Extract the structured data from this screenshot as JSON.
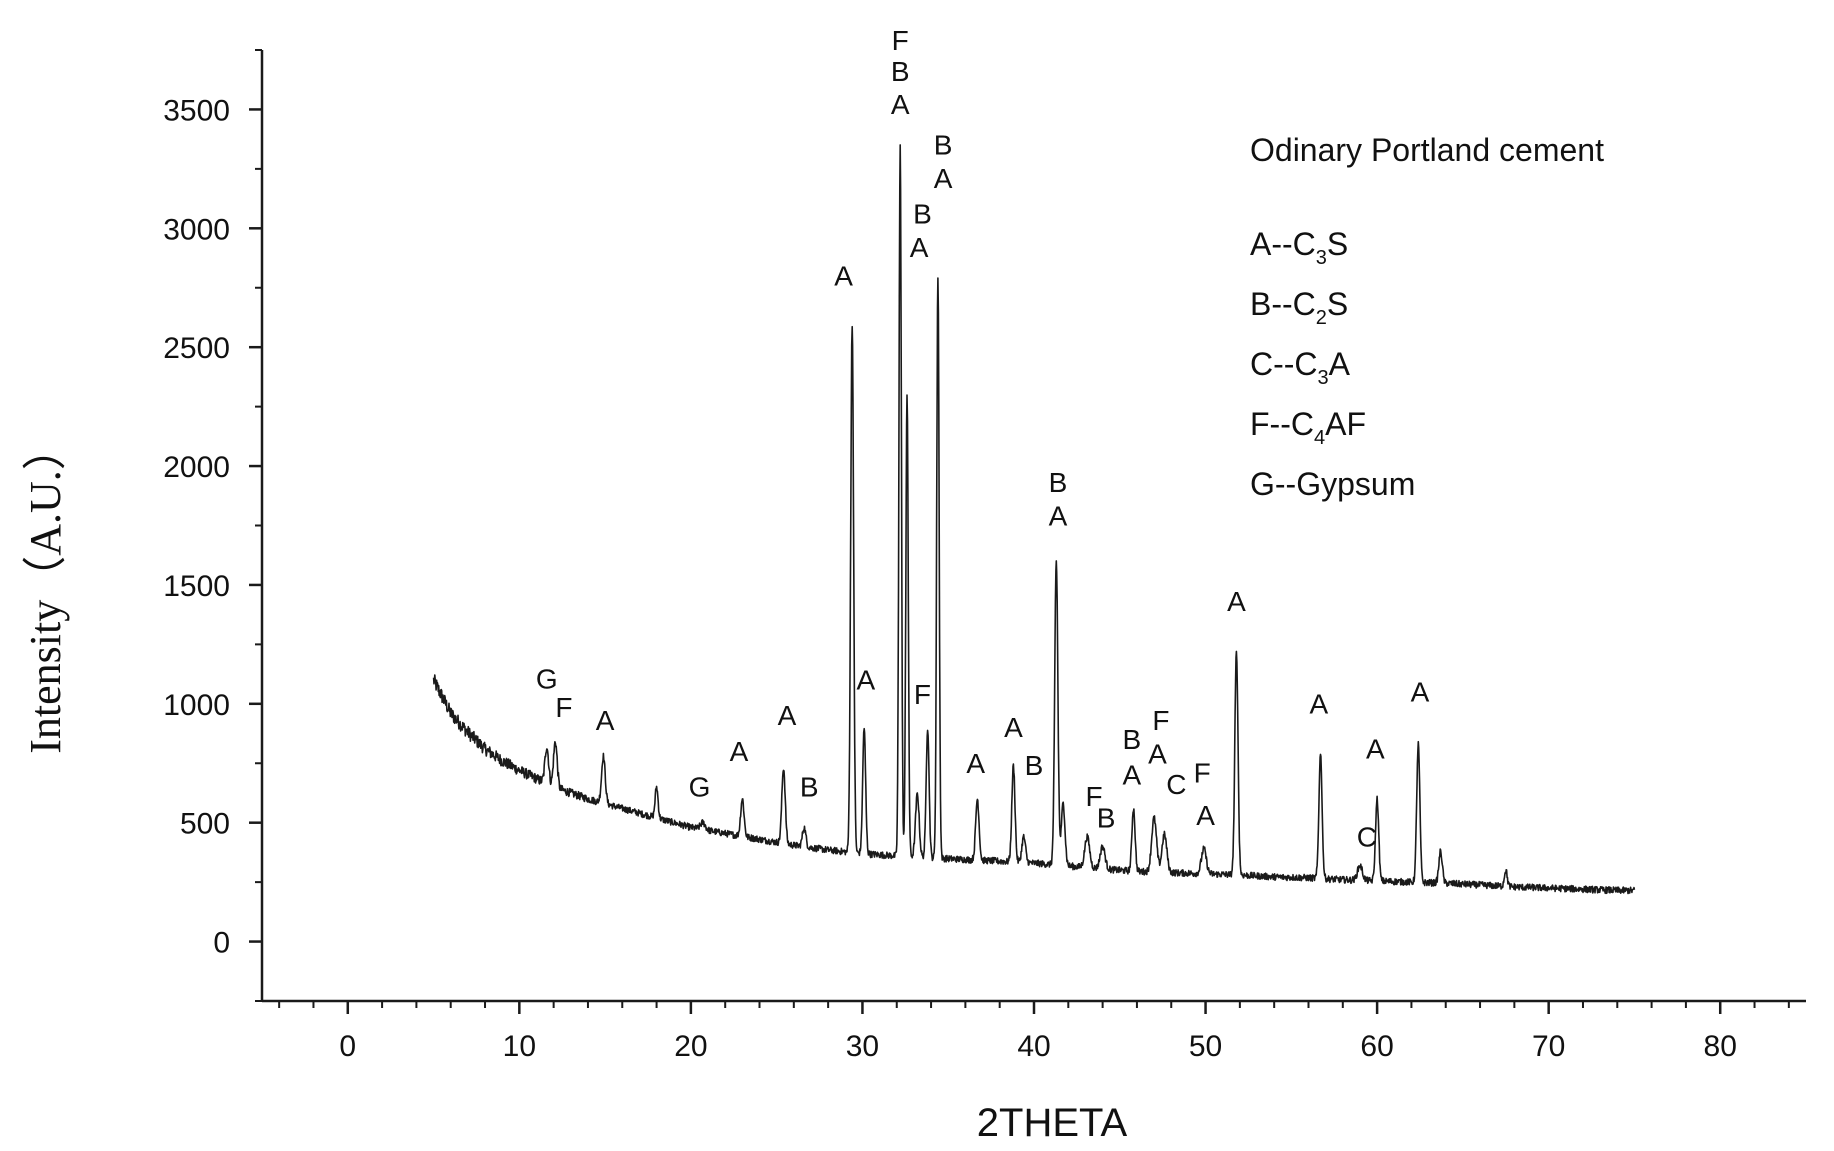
{
  "chart_data": {
    "type": "line",
    "title": "Odinary Portland cement",
    "xlabel": "2THETA",
    "ylabel": "Intensity（A.U.）",
    "xlim": [
      -5,
      85
    ],
    "ylim": [
      -250,
      3750
    ],
    "xticks": [
      0,
      10,
      20,
      30,
      40,
      50,
      60,
      70,
      80
    ],
    "yticks": [
      0,
      500,
      1000,
      1500,
      2000,
      2500,
      3000,
      3500
    ],
    "x_minor_step": 2,
    "y_minor_step": 250,
    "baseline": {
      "points": [
        [
          5,
          1100
        ],
        [
          6,
          960
        ],
        [
          7,
          880
        ],
        [
          8,
          810
        ],
        [
          9,
          760
        ],
        [
          10,
          720
        ],
        [
          12,
          650
        ],
        [
          14,
          600
        ],
        [
          16,
          560
        ],
        [
          18,
          520
        ],
        [
          20,
          480
        ],
        [
          22,
          455
        ],
        [
          24,
          430
        ],
        [
          26,
          405
        ],
        [
          28,
          385
        ],
        [
          30,
          370
        ],
        [
          32,
          360
        ],
        [
          34,
          352
        ],
        [
          36,
          345
        ],
        [
          38,
          338
        ],
        [
          40,
          330
        ],
        [
          42,
          318
        ],
        [
          44,
          305
        ],
        [
          46,
          295
        ],
        [
          48,
          290
        ],
        [
          50,
          285
        ],
        [
          52,
          280
        ],
        [
          54,
          272
        ],
        [
          56,
          268
        ],
        [
          58,
          260
        ],
        [
          60,
          255
        ],
        [
          62,
          250
        ],
        [
          64,
          245
        ],
        [
          66,
          238
        ],
        [
          68,
          230
        ],
        [
          70,
          225
        ],
        [
          72,
          220
        ],
        [
          74,
          215
        ],
        [
          75,
          215
        ]
      ],
      "noise": 14
    },
    "peaks": [
      {
        "x": 11.6,
        "y": 820,
        "width": 0.15
      },
      {
        "x": 12.1,
        "y": 840,
        "width": 0.15
      },
      {
        "x": 14.9,
        "y": 780,
        "width": 0.15
      },
      {
        "x": 18.0,
        "y": 650,
        "width": 0.12
      },
      {
        "x": 20.7,
        "y": 500,
        "width": 0.2
      },
      {
        "x": 23.0,
        "y": 600,
        "width": 0.14
      },
      {
        "x": 25.4,
        "y": 730,
        "width": 0.14
      },
      {
        "x": 26.6,
        "y": 480,
        "width": 0.14
      },
      {
        "x": 29.4,
        "y": 2600,
        "width": 0.12
      },
      {
        "x": 30.1,
        "y": 900,
        "width": 0.12
      },
      {
        "x": 32.2,
        "y": 3360,
        "width": 0.1
      },
      {
        "x": 32.6,
        "y": 2300,
        "width": 0.1
      },
      {
        "x": 33.2,
        "y": 620,
        "width": 0.15
      },
      {
        "x": 33.8,
        "y": 900,
        "width": 0.12
      },
      {
        "x": 34.4,
        "y": 2800,
        "width": 0.1
      },
      {
        "x": 36.7,
        "y": 600,
        "width": 0.14
      },
      {
        "x": 38.8,
        "y": 740,
        "width": 0.13
      },
      {
        "x": 39.4,
        "y": 440,
        "width": 0.15
      },
      {
        "x": 41.3,
        "y": 1600,
        "width": 0.13
      },
      {
        "x": 41.7,
        "y": 580,
        "width": 0.15
      },
      {
        "x": 43.1,
        "y": 440,
        "width": 0.2
      },
      {
        "x": 44.0,
        "y": 400,
        "width": 0.2
      },
      {
        "x": 45.8,
        "y": 560,
        "width": 0.13
      },
      {
        "x": 47.0,
        "y": 520,
        "width": 0.2
      },
      {
        "x": 47.6,
        "y": 450,
        "width": 0.2
      },
      {
        "x": 49.9,
        "y": 390,
        "width": 0.2
      },
      {
        "x": 51.8,
        "y": 1220,
        "width": 0.13
      },
      {
        "x": 56.7,
        "y": 790,
        "width": 0.13
      },
      {
        "x": 59.0,
        "y": 320,
        "width": 0.2
      },
      {
        "x": 60.0,
        "y": 600,
        "width": 0.13
      },
      {
        "x": 62.4,
        "y": 830,
        "width": 0.13
      },
      {
        "x": 63.7,
        "y": 380,
        "width": 0.14
      },
      {
        "x": 67.5,
        "y": 300,
        "width": 0.12
      }
    ],
    "annotations": [
      {
        "text": "G",
        "x": 11.6,
        "y": 1065
      },
      {
        "text": "F",
        "x": 12.6,
        "y": 945
      },
      {
        "text": "A",
        "x": 15.0,
        "y": 890
      },
      {
        "text": "G",
        "x": 20.5,
        "y": 610
      },
      {
        "text": "A",
        "x": 22.8,
        "y": 760
      },
      {
        "text": "A",
        "x": 25.6,
        "y": 910
      },
      {
        "text": "B",
        "x": 26.9,
        "y": 610
      },
      {
        "text": "A",
        "x": 28.9,
        "y": 2760
      },
      {
        "text": "A",
        "x": 30.2,
        "y": 1060
      },
      {
        "text": "F",
        "x": 32.2,
        "y": 3750
      },
      {
        "text": "B",
        "x": 32.2,
        "y": 3620
      },
      {
        "text": "A",
        "x": 32.2,
        "y": 3480
      },
      {
        "text": "F",
        "x": 33.5,
        "y": 1000
      },
      {
        "text": "B",
        "x": 33.5,
        "y": 3020
      },
      {
        "text": "A",
        "x": 33.3,
        "y": 2880
      },
      {
        "text": "B",
        "x": 34.7,
        "y": 3310
      },
      {
        "text": "A",
        "x": 34.7,
        "y": 3170
      },
      {
        "text": "A",
        "x": 36.6,
        "y": 710
      },
      {
        "text": "A",
        "x": 38.8,
        "y": 860
      },
      {
        "text": "B",
        "x": 40.0,
        "y": 700
      },
      {
        "text": "B",
        "x": 41.4,
        "y": 1890
      },
      {
        "text": "A",
        "x": 41.4,
        "y": 1750
      },
      {
        "text": "F",
        "x": 43.5,
        "y": 570
      },
      {
        "text": "B",
        "x": 44.2,
        "y": 480
      },
      {
        "text": "B",
        "x": 45.7,
        "y": 810
      },
      {
        "text": "A",
        "x": 45.7,
        "y": 660
      },
      {
        "text": "F",
        "x": 47.4,
        "y": 890
      },
      {
        "text": "A",
        "x": 47.2,
        "y": 750
      },
      {
        "text": "C",
        "x": 48.3,
        "y": 620
      },
      {
        "text": "F",
        "x": 49.8,
        "y": 670
      },
      {
        "text": "A",
        "x": 50.0,
        "y": 490
      },
      {
        "text": "A",
        "x": 51.8,
        "y": 1390
      },
      {
        "text": "A",
        "x": 56.6,
        "y": 960
      },
      {
        "text": "C",
        "x": 59.4,
        "y": 400
      },
      {
        "text": "A",
        "x": 59.9,
        "y": 770
      },
      {
        "text": "A",
        "x": 62.5,
        "y": 1010
      }
    ],
    "legend": {
      "position": "top-right",
      "items": [
        {
          "label": "A--C",
          "sub": "3",
          "rest": "S"
        },
        {
          "label": "B--C",
          "sub": "2",
          "rest": "S"
        },
        {
          "label": "C--C",
          "sub": "3",
          "rest": "A"
        },
        {
          "label": "F--C",
          "sub": "4",
          "rest": "AF"
        },
        {
          "label": "G--Gypsum",
          "sub": "",
          "rest": ""
        }
      ]
    },
    "grid": false
  },
  "colors": {
    "line": "#1a1a1a",
    "axis": "#1a1a1a",
    "text": "#111111",
    "background": "#ffffff"
  }
}
